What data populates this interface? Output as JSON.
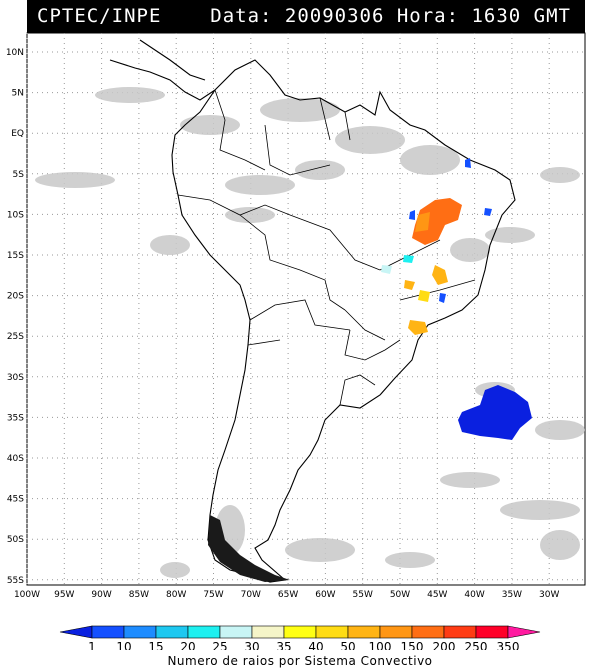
{
  "header": {
    "source": "CPTEC/INPE",
    "datetime": "Data: 20090306 Hora: 1630 GMT"
  },
  "map": {
    "lat_ticks": [
      "10N",
      "5N",
      "EQ",
      "5S",
      "10S",
      "15S",
      "20S",
      "25S",
      "30S",
      "35S",
      "40S",
      "45S",
      "50S",
      "55S"
    ],
    "lon_ticks": [
      "100W",
      "95W",
      "90W",
      "85W",
      "80W",
      "75W",
      "70W",
      "65W",
      "60W",
      "55W",
      "50W",
      "45W",
      "40W",
      "35W",
      "30W"
    ],
    "colors": {
      "land_outline": "#000000",
      "cloud_gray": "#c8c8c8",
      "grid": "#888888"
    }
  },
  "legend": {
    "title": "Numero de raios por Sistema Convectivo",
    "labels": [
      "1",
      "10",
      "15",
      "20",
      "25",
      "30",
      "35",
      "40",
      "50",
      "100",
      "150",
      "200",
      "250",
      "350"
    ],
    "colors": [
      "#0a20e0",
      "#1450ff",
      "#1e8cff",
      "#1ec8f0",
      "#1ef0f0",
      "#c8f5f5",
      "#f5f5c8",
      "#ffff14",
      "#ffdc14",
      "#ffb414",
      "#ff9614",
      "#ff6e14",
      "#ff3c14",
      "#ff0028",
      "#ff1aa0"
    ]
  }
}
